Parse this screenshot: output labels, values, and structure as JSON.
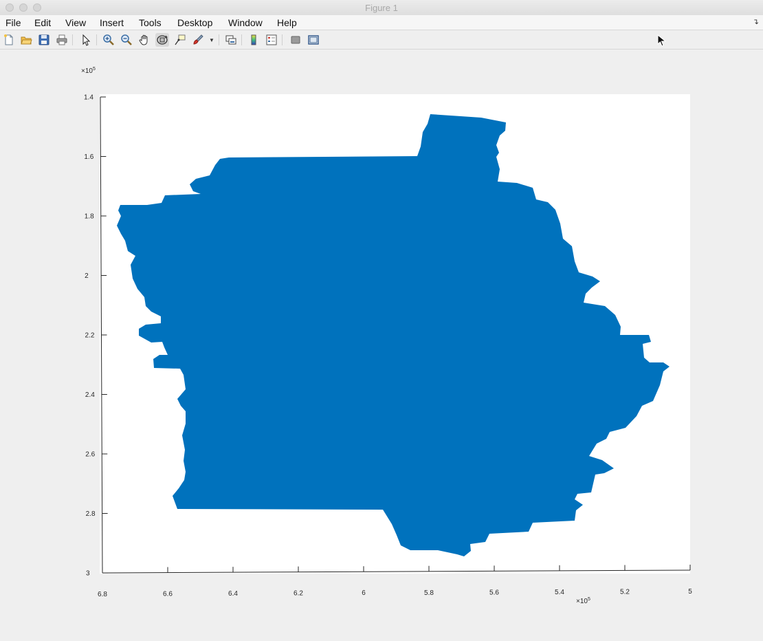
{
  "window": {
    "title": "Figure 1"
  },
  "menubar": {
    "items": [
      "File",
      "Edit",
      "View",
      "Insert",
      "Tools",
      "Desktop",
      "Window",
      "Help"
    ]
  },
  "toolbar": {
    "buttons": [
      {
        "name": "new-figure-icon"
      },
      {
        "name": "open-file-icon"
      },
      {
        "name": "save-icon"
      },
      {
        "name": "print-icon"
      },
      {
        "name": "edit-plot-icon"
      },
      {
        "name": "zoom-in-icon"
      },
      {
        "name": "zoom-out-icon"
      },
      {
        "name": "pan-icon"
      },
      {
        "name": "rotate-3d-icon",
        "active": true
      },
      {
        "name": "data-cursor-icon"
      },
      {
        "name": "brush-icon"
      },
      {
        "name": "link-plot-icon"
      },
      {
        "name": "colorbar-icon"
      },
      {
        "name": "legend-icon"
      },
      {
        "name": "hide-plot-tools-icon"
      },
      {
        "name": "show-plot-tools-icon"
      }
    ]
  },
  "axes": {
    "x_exponent": "×10",
    "x_exponent_power": "5",
    "y_exponent": "×10",
    "y_exponent_power": "5",
    "x_direction": "reversed",
    "y_direction": "reversed",
    "fill_color": "#0072bd",
    "background": "#ffffff",
    "x_ticks": [
      {
        "value": 6.8,
        "label": "6.8"
      },
      {
        "value": 6.6,
        "label": "6.6"
      },
      {
        "value": 6.4,
        "label": "6.4"
      },
      {
        "value": 6.2,
        "label": "6.2"
      },
      {
        "value": 6.0,
        "label": "6"
      },
      {
        "value": 5.8,
        "label": "5.8"
      },
      {
        "value": 5.6,
        "label": "5.6"
      },
      {
        "value": 5.4,
        "label": "5.4"
      },
      {
        "value": 5.2,
        "label": "5.2"
      },
      {
        "value": 5.0,
        "label": "5"
      }
    ],
    "y_ticks": [
      {
        "value": 1.4,
        "label": "1.4"
      },
      {
        "value": 1.6,
        "label": "1.6"
      },
      {
        "value": 1.8,
        "label": "1.8"
      },
      {
        "value": 2.0,
        "label": "2"
      },
      {
        "value": 2.2,
        "label": "2.2"
      },
      {
        "value": 2.4,
        "label": "2.4"
      },
      {
        "value": 2.6,
        "label": "2.6"
      },
      {
        "value": 2.8,
        "label": "2.8"
      },
      {
        "value": 3.0,
        "label": "3"
      }
    ]
  }
}
